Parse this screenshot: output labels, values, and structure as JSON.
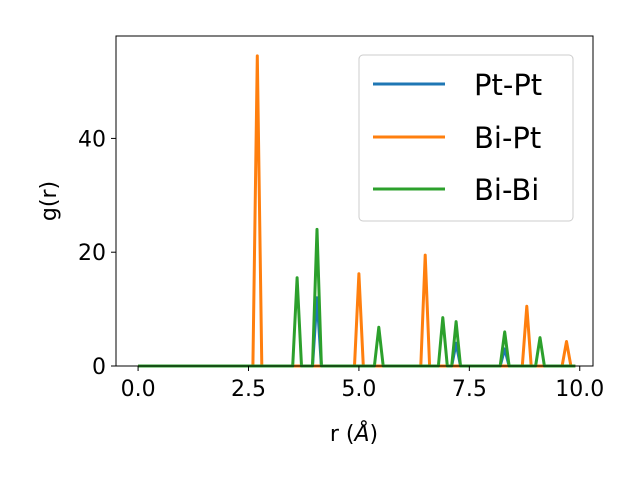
{
  "chart_data": {
    "type": "line",
    "xlabel": "r (",
    "xlabel_symbol": "Å",
    "xlabel_close": ")",
    "ylabel": "g(r)",
    "xlim": [
      -0.5,
      10.3
    ],
    "ylim": [
      0,
      58
    ],
    "xticks": [
      0.0,
      2.5,
      5.0,
      7.5,
      10.0
    ],
    "xtick_labels": [
      "0.0",
      "2.5",
      "5.0",
      "7.5",
      "10.0"
    ],
    "yticks": [
      0,
      20,
      40
    ],
    "ytick_labels": [
      "0",
      "20",
      "40"
    ],
    "grid": false,
    "legend_position": "top-right",
    "series": [
      {
        "name": "Pt-Pt",
        "color": "#1f77b4",
        "x": [
          0.0,
          3.95,
          4.05,
          4.15,
          7.1,
          7.2,
          7.3,
          8.2,
          8.3,
          8.4,
          9.9
        ],
        "y": [
          0,
          0,
          12,
          0,
          0,
          4,
          0,
          0,
          3,
          0,
          0
        ]
      },
      {
        "name": "Bi-Pt",
        "color": "#ff7f0e",
        "x": [
          0.0,
          2.6,
          2.7,
          2.8,
          4.9,
          5.0,
          5.1,
          6.4,
          6.5,
          6.6,
          8.7,
          8.8,
          8.9,
          9.6,
          9.7,
          9.8,
          9.9
        ],
        "y": [
          0,
          0,
          54.5,
          0,
          0,
          16.2,
          0,
          0,
          19.5,
          0,
          0,
          10.5,
          0,
          0,
          4.3,
          0,
          0
        ]
      },
      {
        "name": "Bi-Bi",
        "color": "#2ca02c",
        "x": [
          0.0,
          3.5,
          3.6,
          3.7,
          3.95,
          4.05,
          4.15,
          5.35,
          5.45,
          5.55,
          6.8,
          6.9,
          7.0,
          7.1,
          7.2,
          7.3,
          8.2,
          8.3,
          8.4,
          9.0,
          9.1,
          9.2,
          9.9
        ],
        "y": [
          0,
          0,
          15.5,
          0,
          0,
          24,
          0,
          0,
          6.8,
          0,
          0,
          8.5,
          0,
          0,
          7.8,
          0,
          0,
          6,
          0,
          0,
          5,
          0,
          0
        ]
      }
    ]
  }
}
